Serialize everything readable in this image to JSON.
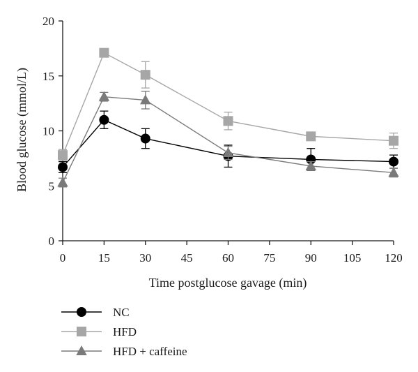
{
  "chart_data": {
    "type": "line",
    "title": "",
    "xlabel": "Time postglucose gavage (min)",
    "ylabel": "Blood glucose (mmol/L)",
    "x": [
      0,
      15,
      30,
      60,
      90,
      120
    ],
    "xticks": [
      0,
      15,
      30,
      45,
      60,
      75,
      90,
      105,
      120
    ],
    "yticks": [
      0,
      5,
      10,
      15,
      20
    ],
    "xlim": [
      0,
      120
    ],
    "ylim": [
      0,
      20
    ],
    "grid": false,
    "legend_position": "bottom-left",
    "series": [
      {
        "name": "NC",
        "marker": "circle",
        "color": "#000000",
        "line_color": "#000000",
        "values": [
          6.7,
          11.0,
          9.3,
          7.7,
          7.4,
          7.2
        ],
        "errors": [
          0.5,
          0.8,
          0.9,
          1.0,
          1.0,
          0.6
        ]
      },
      {
        "name": "HFD",
        "marker": "square",
        "color": "#a6a6a6",
        "line_color": "#a6a6a6",
        "values": [
          7.8,
          17.1,
          15.1,
          10.9,
          9.5,
          9.1
        ],
        "errors": [
          0.5,
          0.3,
          1.2,
          0.8,
          0.3,
          0.7
        ]
      },
      {
        "name": "HFD + caffeine",
        "marker": "triangle",
        "color": "#7a7a7a",
        "line_color": "#7a7a7a",
        "values": [
          5.3,
          13.1,
          12.8,
          8.0,
          6.8,
          6.2
        ],
        "errors": [
          0.4,
          0.4,
          0.8,
          0.6,
          0.4,
          0.4
        ]
      }
    ]
  }
}
